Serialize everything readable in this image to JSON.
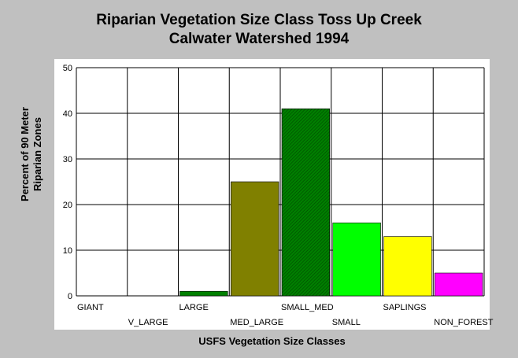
{
  "chart_data": {
    "type": "bar",
    "title": [
      "Riparian Vegetation Size Class Toss Up Creek",
      "Calwater Watershed 1994"
    ],
    "xlabel": "USFS Vegetation Size Classes",
    "ylabel": [
      "Percent of 90 Meter",
      "Riparian Zones"
    ],
    "categories": [
      "GIANT",
      "V_LARGE",
      "LARGE",
      "MED_LARGE",
      "SMALL_MED",
      "SMALL",
      "SAPLINGS",
      "NON_FOREST"
    ],
    "values": [
      0,
      0,
      1,
      25,
      41,
      16,
      13,
      5
    ],
    "bar_colors": [
      "#808000",
      "#808000",
      "#008000",
      "#808000",
      "#008000",
      "#00ff00",
      "#ffff00",
      "#ff00ff"
    ],
    "bar_hatched": [
      false,
      false,
      false,
      false,
      true,
      false,
      false,
      false
    ],
    "ylim": [
      0,
      50
    ],
    "yticks": [
      0,
      10,
      20,
      30,
      40,
      50
    ],
    "grid": true,
    "legend": "none"
  }
}
